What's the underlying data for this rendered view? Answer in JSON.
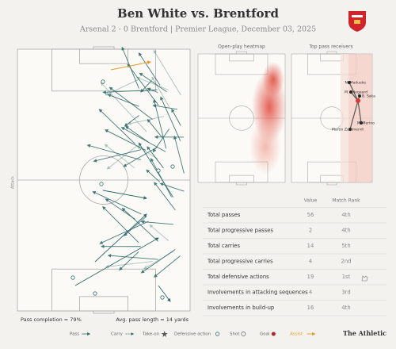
{
  "header": {
    "title": "Ben White vs. Brentford",
    "subtitle": "Arsenal 2 - 0 Brentford | Premier League, December 03, 2025"
  },
  "pass_map": {
    "direction_label": "Attack",
    "pass_completion": "Pass completion = 79%",
    "avg_pass_length": "Avg. pass length = 14 yards"
  },
  "heatmap": {
    "title": "Open-play heatmap"
  },
  "receivers": {
    "title": "Top pass receivers",
    "players": [
      "N. Madueke",
      "M. Odegaard",
      "B. Saka",
      "M. Merino",
      "Martin Zubimendi"
    ]
  },
  "table": {
    "columns": [
      "Value",
      "Match Rank"
    ],
    "rows": [
      [
        "Total passes",
        "56",
        "4th"
      ],
      [
        "Total progressive passes",
        "2",
        "4th"
      ],
      [
        "Total carries",
        "14",
        "5th"
      ],
      [
        "Total progressive carries",
        "4",
        "2nd"
      ],
      [
        "Total defensive actions",
        "19",
        "1st"
      ],
      [
        "Involvements in attacking sequences",
        "4",
        "3rd"
      ],
      [
        "Involvements in build-up",
        "16",
        "4th"
      ]
    ]
  },
  "legend": [
    "Pass",
    "Carry",
    "Take-on",
    "Defensive action",
    "Shot",
    "Goal",
    "Assist"
  ],
  "footer": {
    "brand": "The Athletic"
  }
}
